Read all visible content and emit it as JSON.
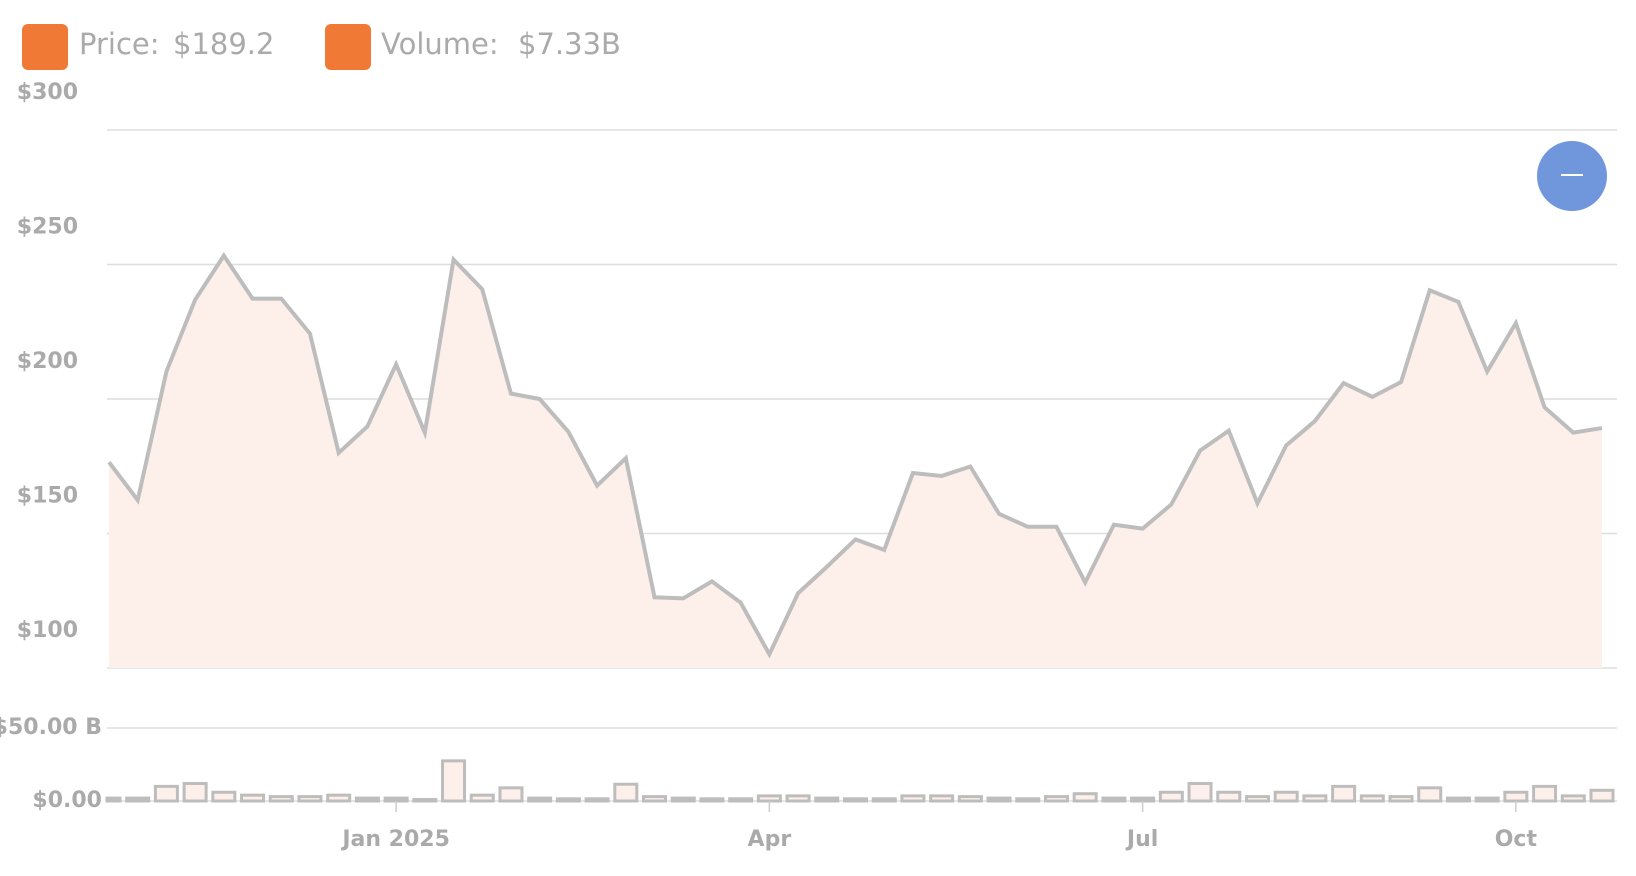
{
  "legend": [
    {
      "label": "Price:",
      "value": "$189.2",
      "color": "#f07a35"
    },
    {
      "label": "Volume:",
      "value": "$7.33B",
      "color": "#f07a35"
    }
  ],
  "chart_data": [
    {
      "type": "area",
      "series": [
        {
          "name": "Price",
          "color": "#bdbdbd",
          "fill": "#fdf0ea",
          "values": [
            176.5,
            162.4,
            210.2,
            236.9,
            253.3,
            237.3,
            237.3,
            224.3,
            180.0,
            189.8,
            212.9,
            187.5,
            251.8,
            240.8,
            202.0,
            200.0,
            187.8,
            167.8,
            178.0,
            126.3,
            125.9,
            132.2,
            124.3,
            105.1,
            127.8,
            137.6,
            147.8,
            143.9,
            172.5,
            171.4,
            174.9,
            157.3,
            152.5,
            152.5,
            131.8,
            153.3,
            151.8,
            160.8,
            180.8,
            188.2,
            161.2,
            182.7,
            191.8,
            205.9,
            200.8,
            206.3,
            240.4,
            236.1,
            210.2,
            228.2,
            196.9,
            187.5,
            189.2
          ]
        }
      ],
      "ylim": [
        100,
        300
      ],
      "yticks": [
        {
          "value": 100,
          "label": "$100"
        },
        {
          "value": 150,
          "label": "$150"
        },
        {
          "value": 200,
          "label": "$200"
        },
        {
          "value": 250,
          "label": "$250"
        },
        {
          "value": 300,
          "label": "$300"
        }
      ],
      "grid": true
    },
    {
      "type": "bar",
      "categories": [
        null,
        null,
        null,
        null,
        null,
        null,
        null,
        null,
        null,
        null,
        "Jan 2025",
        null,
        null,
        null,
        null,
        null,
        null,
        null,
        null,
        null,
        null,
        null,
        null,
        "Apr",
        null,
        null,
        null,
        null,
        null,
        null,
        null,
        null,
        null,
        null,
        null,
        null,
        "Jul",
        null,
        null,
        null,
        null,
        null,
        null,
        null,
        null,
        null,
        null,
        null,
        null,
        "Oct",
        null,
        null,
        null
      ],
      "series": [
        {
          "name": "Volume",
          "color": "#bdbdbd",
          "fill": "#fdf0ea",
          "values": [
            2,
            2,
            10,
            12,
            6,
            4,
            3,
            3,
            4,
            2,
            2,
            1,
            27.5,
            4,
            9,
            2,
            1.5,
            1.5,
            11.5,
            3,
            2,
            1.5,
            1.5,
            3.5,
            3.5,
            2,
            1.5,
            1.5,
            3.5,
            3.5,
            3,
            2,
            1.5,
            3,
            5,
            2,
            2,
            6,
            12,
            6,
            3,
            6,
            3.5,
            10,
            3.5,
            3,
            9,
            2,
            2,
            6,
            10,
            3.5,
            7.33
          ]
        }
      ],
      "ylim": [
        0,
        50
      ],
      "yticks": [
        {
          "value": 0,
          "label": "$0.00"
        },
        {
          "value": 50,
          "label": "$50.00 B"
        }
      ],
      "grid": true
    }
  ]
}
